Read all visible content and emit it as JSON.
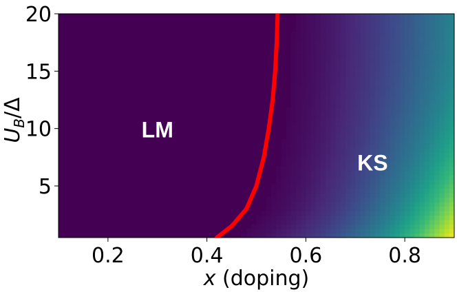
{
  "chart_data": {
    "type": "heatmap",
    "title": "",
    "xlabel": {
      "var": "x",
      "rest": " (doping)"
    },
    "ylabel": {
      "U": "U",
      "sub": "B",
      "rest": "/Δ"
    },
    "xlim": [
      0.1,
      0.9
    ],
    "ylim": [
      0.5,
      20
    ],
    "xticks": [
      {
        "value": 0.2,
        "label": "0.2"
      },
      {
        "value": 0.4,
        "label": "0.4"
      },
      {
        "value": 0.6,
        "label": "0.6"
      },
      {
        "value": 0.8,
        "label": "0.8"
      }
    ],
    "yticks": [
      {
        "value": 5,
        "label": "5"
      },
      {
        "value": 10,
        "label": "10"
      },
      {
        "value": 15,
        "label": "15"
      },
      {
        "value": 20,
        "label": "20"
      }
    ],
    "colormap": [
      "#440154",
      "#482878",
      "#3e4989",
      "#31688e",
      "#26828e",
      "#1f9e89",
      "#35b779",
      "#6ece58",
      "#b5de2b",
      "#fde725"
    ],
    "boundary": {
      "color": "#ff0000",
      "x": [
        0.42,
        0.45,
        0.48,
        0.5,
        0.515,
        0.525,
        0.533,
        0.538,
        0.541,
        0.543
      ],
      "y": [
        0.5,
        1.5,
        3.0,
        5.0,
        7.5,
        10.0,
        12.5,
        15.0,
        17.5,
        20.0
      ]
    },
    "annotations": [
      {
        "text": "LM",
        "x": 0.3,
        "y": 9.9
      },
      {
        "text": "KS",
        "x": 0.735,
        "y": 7.0
      }
    ],
    "grid": false,
    "legend": "none"
  }
}
